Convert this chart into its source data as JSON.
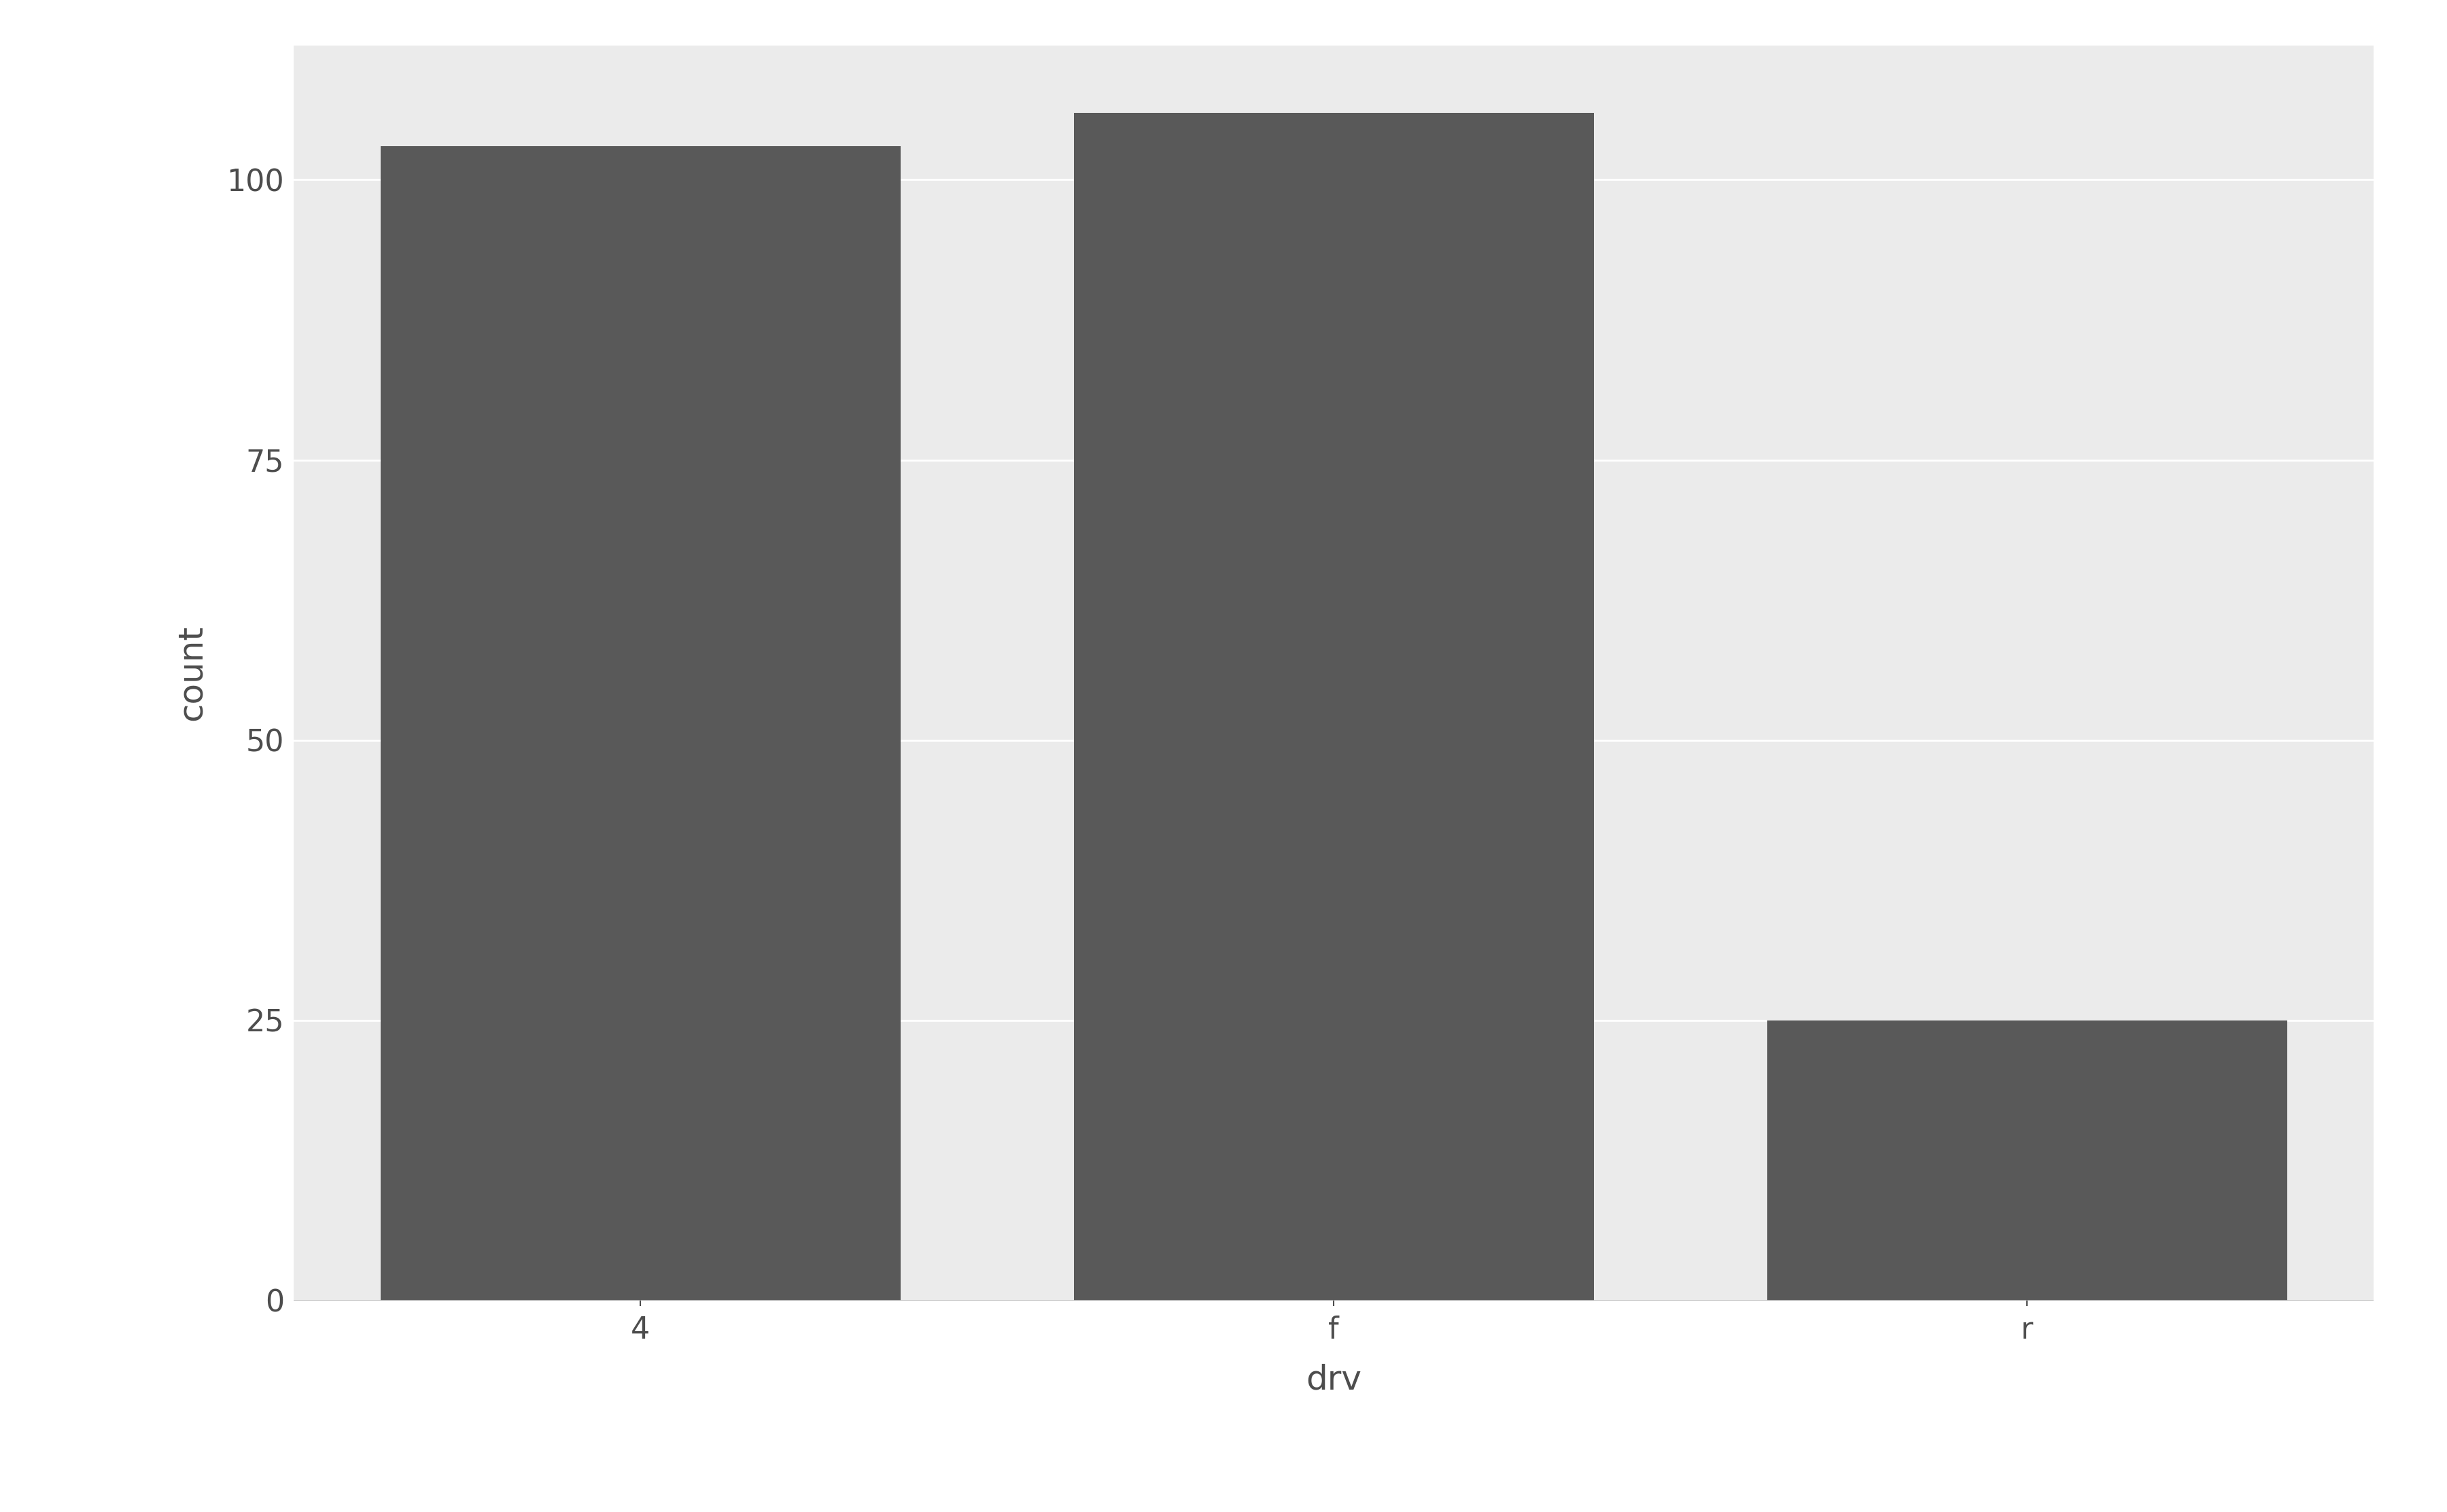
{
  "categories": [
    "4",
    "f",
    "r"
  ],
  "values": [
    103,
    106,
    25
  ],
  "bar_color": "#595959",
  "panel_bg": "#EBEBEB",
  "figure_bg": "#FFFFFF",
  "grid_color": "#FFFFFF",
  "text_color": "#4D4D4D",
  "xlabel": "drv",
  "ylabel": "count",
  "yticks": [
    0,
    25,
    50,
    75,
    100
  ],
  "ylim": [
    0,
    112
  ],
  "axis_label_fontsize": 36,
  "tick_label_fontsize": 32,
  "bar_width": 0.75,
  "xlim_left": -0.5,
  "xlim_right": 2.5
}
